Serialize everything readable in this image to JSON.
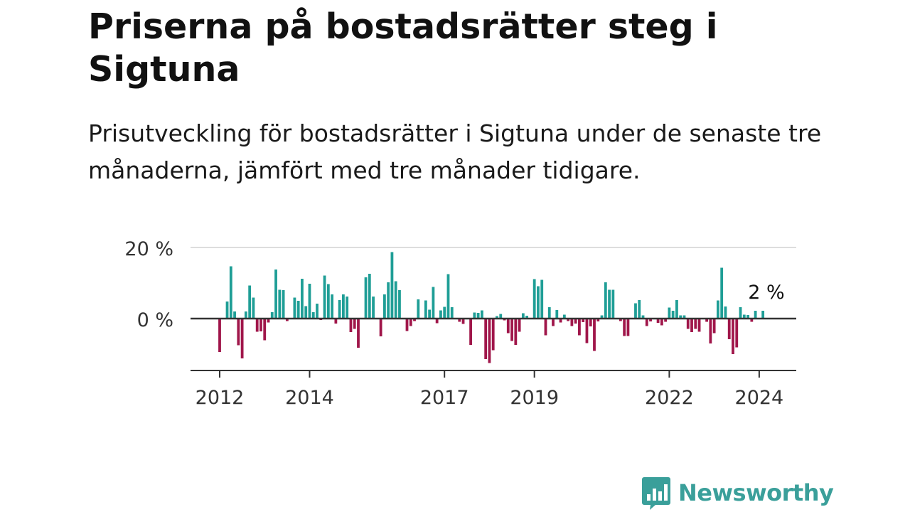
{
  "header": {
    "title": "Priserna på bostadsrätter steg i Sigtuna",
    "subtitle": "Prisutveckling för bostadsrätter i Sigtuna under de senaste tre månaderna, jämfört med tre månader tidigare."
  },
  "brand": {
    "name": "Newsworthy",
    "icon": "newsworthy-logo-icon",
    "color": "#3a9f9a"
  },
  "chart_data": {
    "type": "bar",
    "title": "Priserna på bostadsrätter steg i Sigtuna",
    "subtitle": "Prisutveckling för bostadsrätter i Sigtuna under de senaste tre månaderna, jämfört med tre månader tidigare.",
    "xlabel": "",
    "ylabel": "",
    "x_unit": "month",
    "x_start": "2012-01",
    "x_ticks": [
      {
        "label": "2012",
        "month_index": 0
      },
      {
        "label": "2014",
        "month_index": 24
      },
      {
        "label": "2017",
        "month_index": 60
      },
      {
        "label": "2019",
        "month_index": 84
      },
      {
        "label": "2022",
        "month_index": 120
      },
      {
        "label": "2024",
        "month_index": 144
      }
    ],
    "y_ticks": [
      {
        "label": "20 %",
        "value": 20
      },
      {
        "label": "0 %",
        "value": 0
      }
    ],
    "ylim": [
      -14,
      20
    ],
    "grid": true,
    "positive_color": "#1f9e96",
    "negative_color": "#a0164a",
    "end_label": "2 %",
    "values": [
      -9.4,
      0,
      4.8,
      14.7,
      2,
      -7.5,
      -11.2,
      2,
      9.3,
      5.9,
      -3.7,
      -3.6,
      -6.1,
      -1.1,
      1.8,
      13.8,
      8.1,
      8,
      -0.7,
      0,
      5.9,
      5,
      11.2,
      3.5,
      9.8,
      1.8,
      4.2,
      -0.4,
      12.1,
      9.7,
      6.8,
      -1.4,
      5.2,
      6.8,
      6.2,
      -3.8,
      -2.9,
      -8.2,
      0,
      11.6,
      12.6,
      6.2,
      0,
      -5,
      6.8,
      10.2,
      18.7,
      10.5,
      8,
      0,
      -3.5,
      -2.1,
      -0.7,
      5.4,
      0,
      5.1,
      2.5,
      8.9,
      -1.3,
      2.3,
      3.3,
      12.5,
      3.2,
      0,
      -0.9,
      -1.5,
      0,
      -7.4,
      1.7,
      1.6,
      2.3,
      -11.4,
      -12.5,
      -8.9,
      0.7,
      1.3,
      -0.5,
      -4.1,
      -6.3,
      -7.4,
      -3.7,
      1.5,
      0.8,
      0,
      11.1,
      9.1,
      10.9,
      -4.7,
      3.2,
      -2.1,
      2.4,
      -1.1,
      1.1,
      -0.7,
      -2.1,
      -1.4,
      -4.7,
      -1,
      -6.9,
      -2.2,
      -9.1,
      -0.8,
      0.9,
      10.2,
      8.1,
      8.1,
      0,
      -0.7,
      -4.9,
      -4.9,
      0,
      4.3,
      5.2,
      0.9,
      -2.1,
      -0.8,
      0,
      -1.2,
      -1.9,
      -0.9,
      3.1,
      2.2,
      5.2,
      0.9,
      0.9,
      -2.9,
      -3.8,
      -2.9,
      -3.7,
      0,
      -0.9,
      -7,
      -4.1,
      5.1,
      14.3,
      3.4,
      -5.8,
      -10,
      -8.1,
      3.2,
      1.1,
      1,
      -0.9,
      2.2,
      0,
      2.2
    ]
  }
}
